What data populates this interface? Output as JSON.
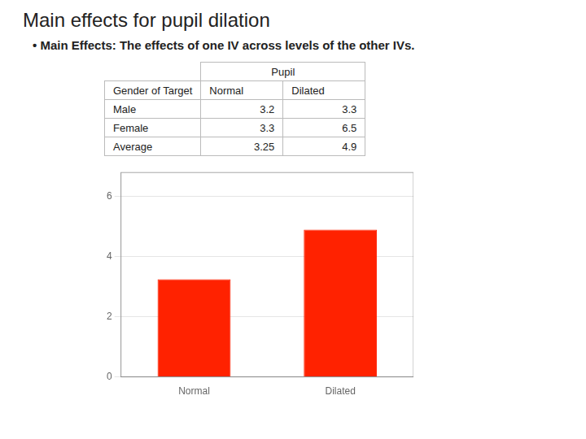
{
  "chart_data": {
    "type": "bar",
    "title": "Main effects for pupil dilation",
    "subtitle": "• Main Effects: The effects of one IV across levels of the other IVs.",
    "annotations": [
      [
        "Pupil"
      ],
      [
        "Gender of Target",
        "Normal",
        "Dilated"
      ],
      [
        "Male",
        "3.2",
        "3.3"
      ],
      [
        "Female",
        "3.3",
        "6.5"
      ],
      [
        "Average",
        "3.25",
        "4.9"
      ]
    ],
    "categories": [
      "Normal",
      "Dilated"
    ],
    "values": [
      3.25,
      4.9
    ],
    "color": "#ff2200",
    "ylim": [
      0,
      6.8
    ],
    "yticks": [
      0,
      2,
      4,
      6
    ],
    "grid": true
  }
}
